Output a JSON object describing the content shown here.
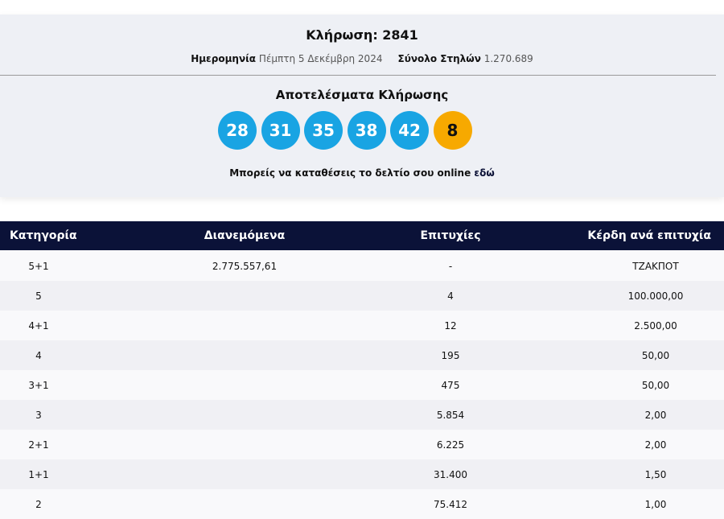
{
  "draw": {
    "title": "Κλήρωση: 2841",
    "date_label": "Ημερομηνία",
    "date": "Πέμπτη 5 Δεκέμβρη 2024",
    "columns_label": "Σύνολο Στηλών",
    "columns": "1.270.689",
    "results_title": "Αποτελέσματα Κλήρωσης",
    "numbers": [
      28,
      31,
      35,
      38,
      42
    ],
    "bonus": 8,
    "online_text": "Μπορείς να καταθέσεις το δελτίο σου online",
    "online_link": "εδώ"
  },
  "table": {
    "headers": [
      "Κατηγορία",
      "Διανεμόμενα",
      "Επιτυχίες",
      "Κέρδη ανά επιτυχία"
    ],
    "rows": [
      {
        "category": "5+1",
        "distributed": "2.775.557,61",
        "winners": "-",
        "prize": "ΤΖΑΚΠΟΤ"
      },
      {
        "category": "5",
        "winners": "4",
        "prize": "100.000,00"
      },
      {
        "category": "4+1",
        "winners": "12",
        "prize": "2.500,00"
      },
      {
        "category": "4",
        "winners": "195",
        "prize": "50,00"
      },
      {
        "category": "3+1",
        "winners": "475",
        "prize": "50,00"
      },
      {
        "category": "3",
        "winners": "5.854",
        "prize": "2,00"
      },
      {
        "category": "2+1",
        "winners": "6.225",
        "prize": "2,00"
      },
      {
        "category": "1+1",
        "winners": "31.400",
        "prize": "1,50"
      },
      {
        "category": "2",
        "winners": "75.412",
        "prize": "1,00"
      }
    ]
  }
}
